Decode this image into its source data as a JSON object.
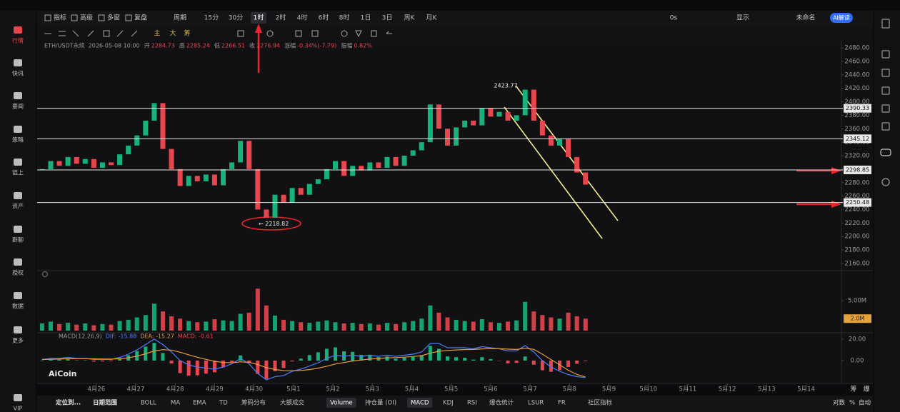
{
  "sidebar": [
    "行情",
    "快讯",
    "要闻",
    "策略",
    "链上",
    "资产",
    "群聊",
    "授权",
    "数据",
    "更多",
    "VIP"
  ],
  "toolbar": {
    "tools": [
      "指标",
      "高级",
      "多窗",
      "复盘"
    ],
    "period_menu": "周期",
    "periods": [
      "15分",
      "30分",
      "1时",
      "2时",
      "4时",
      "6时",
      "8时",
      "1日",
      "3日",
      "周K",
      "月K"
    ],
    "active_period": "1时",
    "right": [
      "0s",
      "显示",
      "未命名"
    ],
    "ai": "AI解读"
  },
  "draw_toolbar": [
    "主",
    "大",
    "筹"
  ],
  "info": {
    "symbol": "ETH/USDT永续",
    "time": "2026-05-08 10:00",
    "fields": [
      {
        "label": "开",
        "value": "2284.73"
      },
      {
        "label": "高",
        "value": "2285.24"
      },
      {
        "label": "低",
        "value": "2266.51"
      },
      {
        "label": "收",
        "value": "2276.94"
      },
      {
        "label": "涨幅",
        "value": "-0.34%(-7.79)"
      },
      {
        "label": "振幅",
        "value": "0.82%"
      }
    ]
  },
  "chart_data": [
    {
      "type": "candlestick",
      "up_color": "#17b27a",
      "down_color": "#e8464e",
      "x": [
        -33,
        -27.75,
        -22.5,
        -17.25,
        -12,
        -6.75,
        -1.5,
        3.75,
        9,
        14.25,
        19.5,
        24.75,
        30,
        35.25,
        40.5,
        45.75,
        51,
        56.25,
        61.5,
        66.75,
        72,
        77.25,
        82.5,
        87.75,
        93,
        98.25,
        103.5,
        108.75,
        114,
        119.25,
        124.5,
        129.75,
        135,
        140.25,
        145.5,
        150.75,
        156,
        161.25,
        166.5,
        171.75,
        177,
        182.25,
        187.5,
        192.75,
        198,
        203.25,
        208.5,
        213.75,
        219,
        224.25,
        229.5,
        234.75,
        240,
        245.25,
        250.5,
        255.75,
        261,
        266.25,
        271.5,
        276.75,
        282,
        287.25,
        292.5,
        297.75
      ],
      "values": [
        2300,
        2312,
        2305,
        2318,
        2308,
        2315,
        2302,
        2310,
        2306,
        2322,
        2335,
        2350,
        2372,
        2398,
        2330,
        2300,
        2275,
        2290,
        2282,
        2292,
        2276,
        2300,
        2310,
        2342,
        2300,
        2240,
        2228,
        2262,
        2250,
        2272,
        2262,
        2278,
        2285,
        2300,
        2312,
        2290,
        2305,
        2298,
        2310,
        2302,
        2318,
        2305,
        2320,
        2328,
        2340,
        2396,
        2360,
        2335,
        2362,
        2372,
        2365,
        2390,
        2378,
        2385,
        2372,
        2380,
        2418,
        2372,
        2350,
        2335,
        2345,
        2318,
        2295,
        2277
      ],
      "xlim": [
        -36,
        453.5
      ],
      "xticks": [
        {
          "value": 0,
          "label": "4月26"
        },
        {
          "value": 24,
          "label": "4月27"
        },
        {
          "value": 48,
          "label": "4月28"
        },
        {
          "value": 72,
          "label": "4月29"
        },
        {
          "value": 96,
          "label": "4月30"
        },
        {
          "value": 120,
          "label": "5月1"
        },
        {
          "value": 144,
          "label": "5月2"
        },
        {
          "value": 168,
          "label": "5月3"
        },
        {
          "value": 192,
          "label": "5月4"
        },
        {
          "value": 216,
          "label": "5月5"
        },
        {
          "value": 240,
          "label": "5月6"
        },
        {
          "value": 264,
          "label": "5月7"
        },
        {
          "value": 288,
          "label": "5月8"
        },
        {
          "value": 312,
          "label": "5月9"
        },
        {
          "value": 336,
          "label": "5月10"
        },
        {
          "value": 360,
          "label": "5月11"
        },
        {
          "value": 384,
          "label": "5月12"
        },
        {
          "value": 408,
          "label": "5月13"
        },
        {
          "value": 432,
          "label": "5月14"
        }
      ],
      "ylim": [
        2150.4,
        2490.7
      ],
      "yticks": [
        {
          "value": 2480,
          "label": "2480.00"
        },
        {
          "value": 2460,
          "label": "2460.00"
        },
        {
          "value": 2440,
          "label": "2440.00"
        },
        {
          "value": 2420,
          "label": "2420.00"
        },
        {
          "value": 2400,
          "label": "2400.00"
        },
        {
          "value": 2380,
          "label": "2380.00"
        },
        {
          "value": 2360,
          "label": "2360.00"
        },
        {
          "value": 2340,
          "label": "2340.00"
        },
        {
          "value": 2320,
          "label": "2320.00"
        },
        {
          "value": 2300,
          "label": "2300.00"
        },
        {
          "value": 2280,
          "label": "2280.00"
        },
        {
          "value": 2260,
          "label": "2260.00"
        },
        {
          "value": 2240,
          "label": "2240.00"
        },
        {
          "value": 2220,
          "label": "2220.00"
        },
        {
          "value": 2200,
          "label": "2200.00"
        },
        {
          "value": 2180,
          "label": "2180.00"
        },
        {
          "value": 2160,
          "label": "2160.00"
        }
      ],
      "grid": false,
      "levels": [
        2390.33,
        2345.12,
        2298.85,
        2250.48
      ],
      "level_color": "#e8e8e8",
      "annotations": [
        {
          "label": "2423.77",
          "value": 2423.77
        },
        {
          "label": "← 2218.82",
          "value": 2218.82
        }
      ]
    },
    {
      "type": "bar",
      "values": [
        1.2,
        1.5,
        1.1,
        1.3,
        1.0,
        1.2,
        0.9,
        1.1,
        1.0,
        1.6,
        1.8,
        2.2,
        2.6,
        4.5,
        3.2,
        2.4,
        2.0,
        1.6,
        1.4,
        1.5,
        1.9,
        1.7,
        1.6,
        2.8,
        3.0,
        7.0,
        4.2,
        2.5,
        1.8,
        1.6,
        1.4,
        1.3,
        1.5,
        1.7,
        1.4,
        1.2,
        1.3,
        1.1,
        1.2,
        1.0,
        1.3,
        1.1,
        1.4,
        1.6,
        2.0,
        4.2,
        3.0,
        2.2,
        1.8,
        1.6,
        1.5,
        1.9,
        1.4,
        1.3,
        1.5,
        1.7,
        4.8,
        3.2,
        2.6,
        2.2,
        2.0,
        3.0,
        2.4,
        2.0
      ],
      "ylim": [
        0,
        9.9
      ],
      "yticks": [
        {
          "value": 5,
          "label": "5.00M"
        }
      ],
      "last_label": {
        "value": 2,
        "label": "2.0M"
      },
      "last_label_color": "#e8a23a"
    },
    {
      "type": "macd",
      "legend": [
        "MACD(12,26,9)",
        "DIF: -15.88",
        "DEA: -15.27",
        "MACD: -0.61"
      ],
      "up_color": "#17b27a",
      "down_color": "#e8464e",
      "histogram": [
        0,
        1.2,
        0.9,
        2,
        0.3,
        0.3,
        -0.9,
        -0.8,
        -0.6,
        2,
        5,
        8.9,
        13,
        16.5,
        7,
        -2.7,
        -11.7,
        -14.1,
        -13.7,
        -12.2,
        -11,
        -6.3,
        -1.5,
        4.8,
        -2.1,
        -12.5,
        -17.1,
        -10,
        -6.9,
        -0.8,
        1.8,
        5.1,
        7.7,
        11,
        12.3,
        8.7,
        8.1,
        5.3,
        5.4,
        3.2,
        3.8,
        1.8,
        2.7,
        3.3,
        5.1,
        13.7,
        11,
        3.9,
        3.2,
        2.6,
        0.9,
        3.2,
        1.4,
        -0.2,
        -2.6,
        -2.1,
        3.8,
        -3.8,
        -9,
        -10.5,
        -9,
        -6,
        -3,
        -0.61
      ],
      "series": [
        {
          "color": "#4f7cff",
          "values": [
            1,
            2,
            2,
            3,
            2,
            2,
            1,
            1,
            1,
            3,
            6,
            10,
            15,
            20,
            15,
            8,
            0,
            -4,
            -6,
            -7,
            -8,
            -6,
            -3,
            2,
            -3,
            -12,
            -18,
            -15,
            -14,
            -10,
            -8,
            -5,
            -2,
            2,
            5,
            4,
            5,
            4,
            5,
            4,
            5,
            4,
            5,
            6,
            8,
            16,
            16,
            12,
            12,
            12,
            11,
            13,
            12,
            11,
            9,
            9,
            14,
            8,
            0,
            -6,
            -10,
            -13,
            -15,
            -15.88
          ]
        },
        {
          "color": "#e89a3a",
          "values": [
            1,
            1.2,
            1.4,
            1.7,
            1.8,
            1.8,
            1.6,
            1.5,
            1.4,
            1.7,
            2.6,
            4.1,
            6.3,
            9,
            10.2,
            9.8,
            7.8,
            5.4,
            3.1,
            1.1,
            -0.7,
            -1.8,
            -2,
            -1.2,
            -1.6,
            -3.7,
            -6.6,
            -8.3,
            -9.4,
            -9.5,
            -9.2,
            -8.4,
            -7.1,
            -5.3,
            -3.2,
            -1.8,
            -0.4,
            0.5,
            1.4,
            1.9,
            2.5,
            2.8,
            3.2,
            3.8,
            4.6,
            6.9,
            8.7,
            9.4,
            9.9,
            10.3,
            10.4,
            10.9,
            11.1,
            11.1,
            10.7,
            10.4,
            11.5,
            10.5,
            6,
            1,
            -4,
            -9,
            -13,
            -15.27
          ]
        }
      ],
      "ylim": [
        -20,
        25.3
      ],
      "yticks": [
        {
          "value": 20,
          "label": "20.00"
        },
        {
          "value": 0,
          "label": "0.00"
        }
      ]
    }
  ],
  "corner_buttons": [
    "筹",
    "爆"
  ],
  "watermark": "AiCoin",
  "bottom_bar": {
    "left": [
      "定位到...",
      "日期范围"
    ],
    "indicators": [
      "BOLL",
      "MA",
      "EMA",
      "TD",
      "筹码分布",
      "大额成交",
      "Volume",
      "持仓量 (OI)",
      "MACD",
      "KDJ",
      "RSI",
      "爆仓统计",
      "LSUR",
      "FR",
      "社区指标"
    ],
    "active": [
      "Volume",
      "MACD"
    ],
    "right": [
      "对数",
      "%",
      "自动"
    ]
  }
}
